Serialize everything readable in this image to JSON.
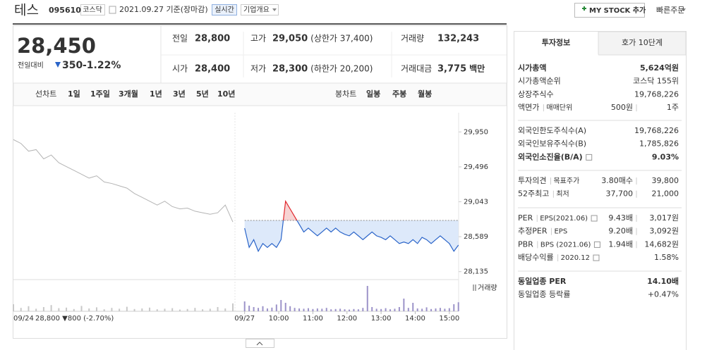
{
  "header": {
    "name": "테스",
    "code": "095610",
    "market": "코스닥",
    "date": "2021.09.27 기준(장마감)",
    "realtime": "실시간",
    "overview": "기업개요",
    "mystock": "MY STOCK 추가",
    "quick_order": "빠른주문"
  },
  "quote": {
    "price": "28,450",
    "change_label": "전일대비",
    "change": "350",
    "change_pct": "-1.22%",
    "grid": [
      [
        {
          "label": "전일",
          "value": "28,800"
        },
        {
          "label": "고가",
          "value": "29,050",
          "note": "(상한가 37,400)"
        },
        {
          "label": "거래량",
          "value": "132,243"
        }
      ],
      [
        {
          "label": "시가",
          "value": "28,400"
        },
        {
          "label": "저가",
          "value": "28,300",
          "note": "(하한가 20,200)"
        },
        {
          "label": "거래대금",
          "value": "3,775",
          "note": "백만"
        }
      ]
    ]
  },
  "tabs": {
    "line_label": "선차트",
    "line": [
      "1일",
      "1주일",
      "3개월",
      "1년",
      "3년",
      "5년",
      "10년"
    ],
    "candle_label": "봉차트",
    "candle": [
      "일봉",
      "주봉",
      "월봉"
    ]
  },
  "chart_data": {
    "type": "line",
    "ylim": [
      28050,
      30200
    ],
    "yticks": [
      {
        "value": 29950,
        "label": "29,950"
      },
      {
        "value": 29496,
        "label": "29,496"
      },
      {
        "value": 29043,
        "label": "29,043"
      },
      {
        "value": 28589,
        "label": "28,589"
      },
      {
        "value": 28135,
        "label": "28,135"
      }
    ],
    "xlim": [
      -17,
      390
    ],
    "xticks": [
      {
        "value": 0,
        "label": "09/27"
      },
      {
        "value": 60,
        "label": "10:00"
      },
      {
        "value": 120,
        "label": "11:00"
      },
      {
        "value": 180,
        "label": "12:00"
      },
      {
        "value": 240,
        "label": "13:00"
      },
      {
        "value": 300,
        "label": "14:00"
      },
      {
        "value": 360,
        "label": "15:00"
      }
    ],
    "reference": 28800,
    "volume_label": "거래량",
    "volume_lim": [
      0,
      10000
    ],
    "prev_label": "09/24",
    "prev_note": "28,800 ▼800 (-2.70%)",
    "series": [
      {
        "color": "#b4b4b4",
        "values": [
          29850,
          29800,
          29700,
          29720,
          29600,
          29650,
          29550,
          29500,
          29450,
          29400,
          29350,
          29380,
          29300,
          29280,
          29250,
          29220,
          29150,
          29100,
          29050,
          29000,
          29050,
          28980,
          28950,
          28960,
          28920,
          28900,
          28880,
          28900,
          29000,
          28780
        ],
        "volume": [
          2500,
          1200,
          1800,
          900,
          1500,
          2200,
          1100,
          1300,
          800,
          1900,
          1000,
          1400,
          700,
          1200,
          900,
          1600,
          800,
          1000,
          1300,
          700,
          900,
          1100,
          600,
          800,
          1200,
          700,
          900,
          1500,
          1000,
          2800
        ]
      },
      {
        "color": "#2a64c9",
        "above_color": "#e0262b",
        "x": [
          0,
          8,
          16,
          24,
          32,
          40,
          48,
          56,
          64,
          72,
          80,
          88,
          96,
          104,
          112,
          120,
          128,
          136,
          144,
          152,
          160,
          168,
          176,
          184,
          192,
          200,
          208,
          216,
          224,
          232,
          240,
          248,
          256,
          264,
          272,
          280,
          288,
          296,
          304,
          312,
          320,
          328,
          336,
          344,
          352,
          360,
          368,
          376
        ],
        "values": [
          28700,
          28450,
          28550,
          28400,
          28500,
          28450,
          28500,
          28450,
          28550,
          29050,
          28950,
          28850,
          28750,
          28650,
          28700,
          28650,
          28600,
          28650,
          28700,
          28650,
          28700,
          28650,
          28620,
          28600,
          28650,
          28600,
          28550,
          28600,
          28650,
          28600,
          28580,
          28550,
          28600,
          28550,
          28500,
          28520,
          28500,
          28550,
          28500,
          28580,
          28550,
          28500,
          28550,
          28600,
          28550,
          28500,
          28400,
          28480
        ],
        "volume": [
          3500,
          2000,
          1500,
          1200,
          1800,
          1000,
          1300,
          2400,
          4000,
          3000,
          1800,
          1200,
          1000,
          900,
          1100,
          800,
          1000,
          900,
          1200,
          700,
          800,
          900,
          700,
          600,
          800,
          700,
          1200,
          9000,
          1500,
          900,
          800,
          1100,
          700,
          900,
          1500,
          4500,
          1200,
          3000,
          1000,
          900,
          1400,
          800,
          1000,
          1200,
          900,
          1100,
          2500,
          3200
        ]
      }
    ]
  },
  "info": {
    "tabs": [
      "투자정보",
      "호가 10단계"
    ],
    "groups": [
      [
        {
          "labels": [
            "시가총액"
          ],
          "values": [
            "5,624억원"
          ]
        },
        {
          "labels": [
            "시가총액순위"
          ],
          "values": [
            "코스닥 155위"
          ]
        },
        {
          "labels": [
            "상장주식수"
          ],
          "values": [
            "19,768,226"
          ]
        },
        {
          "labels": [
            "액면가",
            "매매단위"
          ],
          "values": [
            "500원",
            "1주"
          ]
        }
      ],
      [
        {
          "labels": [
            "외국인한도주식수(A)"
          ],
          "values": [
            "19,768,226"
          ]
        },
        {
          "labels": [
            "외국인보유주식수(B)"
          ],
          "values": [
            "1,785,826"
          ]
        },
        {
          "labels": [
            "외국인소진율(B/A)"
          ],
          "values": [
            "9.03%"
          ]
        }
      ],
      [
        {
          "labels": [
            "투자의견",
            "목표주가"
          ],
          "values": [
            "3.80매수",
            "39,800"
          ]
        },
        {
          "labels": [
            "52주최고",
            "최저"
          ],
          "values": [
            "37,700",
            "21,000"
          ]
        }
      ],
      [
        {
          "labels": [
            "PER",
            "EPS(2021.06)"
          ],
          "values": [
            "9.43배",
            "3,017원"
          ]
        },
        {
          "labels": [
            "추정PER",
            "EPS"
          ],
          "values": [
            "9.20배",
            "3,092원"
          ]
        },
        {
          "labels": [
            "PBR",
            "BPS (2021.06)"
          ],
          "values": [
            "1.94배",
            "14,682원"
          ]
        },
        {
          "labels": [
            "배당수익률",
            "2020.12"
          ],
          "values": [
            "1.58%"
          ]
        }
      ],
      [
        {
          "labels": [
            "동일업종 PER"
          ],
          "values": [
            "14.10배"
          ]
        },
        {
          "labels": [
            "동일업종 등락률"
          ],
          "values": [
            "+0.47%"
          ]
        }
      ]
    ]
  }
}
